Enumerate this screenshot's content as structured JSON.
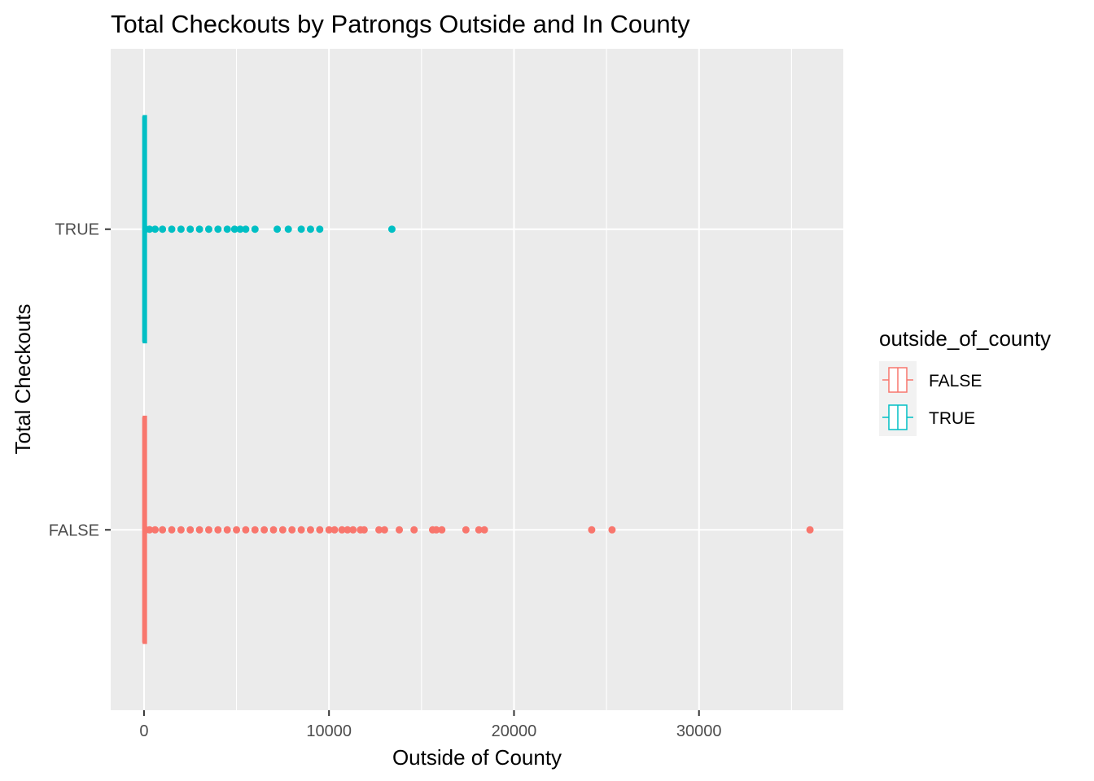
{
  "chart_data": {
    "type": "boxplot",
    "orientation": "horizontal",
    "title": "Total Checkouts by Patrongs Outside and In County",
    "xlabel": "Outside of County",
    "ylabel": "Total Checkouts",
    "xlim": [
      -1800,
      37800
    ],
    "x_ticks": [
      0,
      10000,
      20000,
      30000
    ],
    "x_tick_labels": [
      "0",
      "10000",
      "20000",
      "30000"
    ],
    "categories": [
      "FALSE",
      "TRUE"
    ],
    "grid": true,
    "legend": {
      "title": "outside_of_county",
      "position": "right",
      "items": [
        {
          "label": "FALSE",
          "color": "#F8766D"
        },
        {
          "label": "TRUE",
          "color": "#00BFC4"
        }
      ]
    },
    "series": [
      {
        "name": "FALSE",
        "color": "#F8766D",
        "box": {
          "min": 0,
          "q1": 0,
          "median": 0,
          "q3": 0,
          "max": 60
        },
        "outliers": [
          100,
          300,
          600,
          1000,
          1500,
          2000,
          2500,
          3000,
          3500,
          4000,
          4500,
          5000,
          5500,
          6000,
          6500,
          7000,
          7500,
          8000,
          8500,
          9000,
          9500,
          10000,
          10300,
          10700,
          11000,
          11300,
          11700,
          11900,
          12700,
          13000,
          13800,
          14600,
          15600,
          15800,
          16100,
          17400,
          18100,
          18400,
          24200,
          25300,
          36000
        ]
      },
      {
        "name": "TRUE",
        "color": "#00BFC4",
        "box": {
          "min": 0,
          "q1": 0,
          "median": 0,
          "q3": 0,
          "max": 40
        },
        "outliers": [
          100,
          300,
          600,
          1000,
          1500,
          2000,
          2500,
          3000,
          3500,
          4000,
          4500,
          4900,
          5200,
          5500,
          6000,
          7200,
          7800,
          8500,
          9000,
          9500,
          13400
        ]
      }
    ]
  }
}
